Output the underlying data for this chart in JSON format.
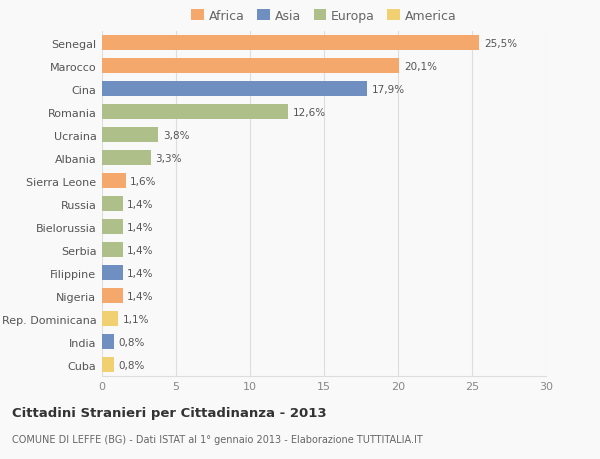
{
  "countries": [
    "Senegal",
    "Marocco",
    "Cina",
    "Romania",
    "Ucraina",
    "Albania",
    "Sierra Leone",
    "Russia",
    "Bielorussia",
    "Serbia",
    "Filippine",
    "Nigeria",
    "Rep. Dominicana",
    "India",
    "Cuba"
  ],
  "values": [
    25.5,
    20.1,
    17.9,
    12.6,
    3.8,
    3.3,
    1.6,
    1.4,
    1.4,
    1.4,
    1.4,
    1.4,
    1.1,
    0.8,
    0.8
  ],
  "labels": [
    "25,5%",
    "20,1%",
    "17,9%",
    "12,6%",
    "3,8%",
    "3,3%",
    "1,6%",
    "1,4%",
    "1,4%",
    "1,4%",
    "1,4%",
    "1,4%",
    "1,1%",
    "0,8%",
    "0,8%"
  ],
  "colors": [
    "#F4A86C",
    "#F4A86C",
    "#6E8FBF",
    "#AEBF8A",
    "#AEBF8A",
    "#AEBF8A",
    "#F4A86C",
    "#AEBF8A",
    "#AEBF8A",
    "#AEBF8A",
    "#6E8FBF",
    "#F4A86C",
    "#F0D070",
    "#6E8FBF",
    "#F0D070"
  ],
  "legend_labels": [
    "Africa",
    "Asia",
    "Europa",
    "America"
  ],
  "legend_colors": [
    "#F4A86C",
    "#6E8FBF",
    "#AEBF8A",
    "#F0D070"
  ],
  "title": "Cittadini Stranieri per Cittadinanza - 2013",
  "subtitle": "COMUNE DI LEFFE (BG) - Dati ISTAT al 1° gennaio 2013 - Elaborazione TUTTITALIA.IT",
  "xlim": [
    0,
    30
  ],
  "xticks": [
    0,
    5,
    10,
    15,
    20,
    25,
    30
  ],
  "background_color": "#f9f9f9",
  "grid_color": "#dddddd"
}
